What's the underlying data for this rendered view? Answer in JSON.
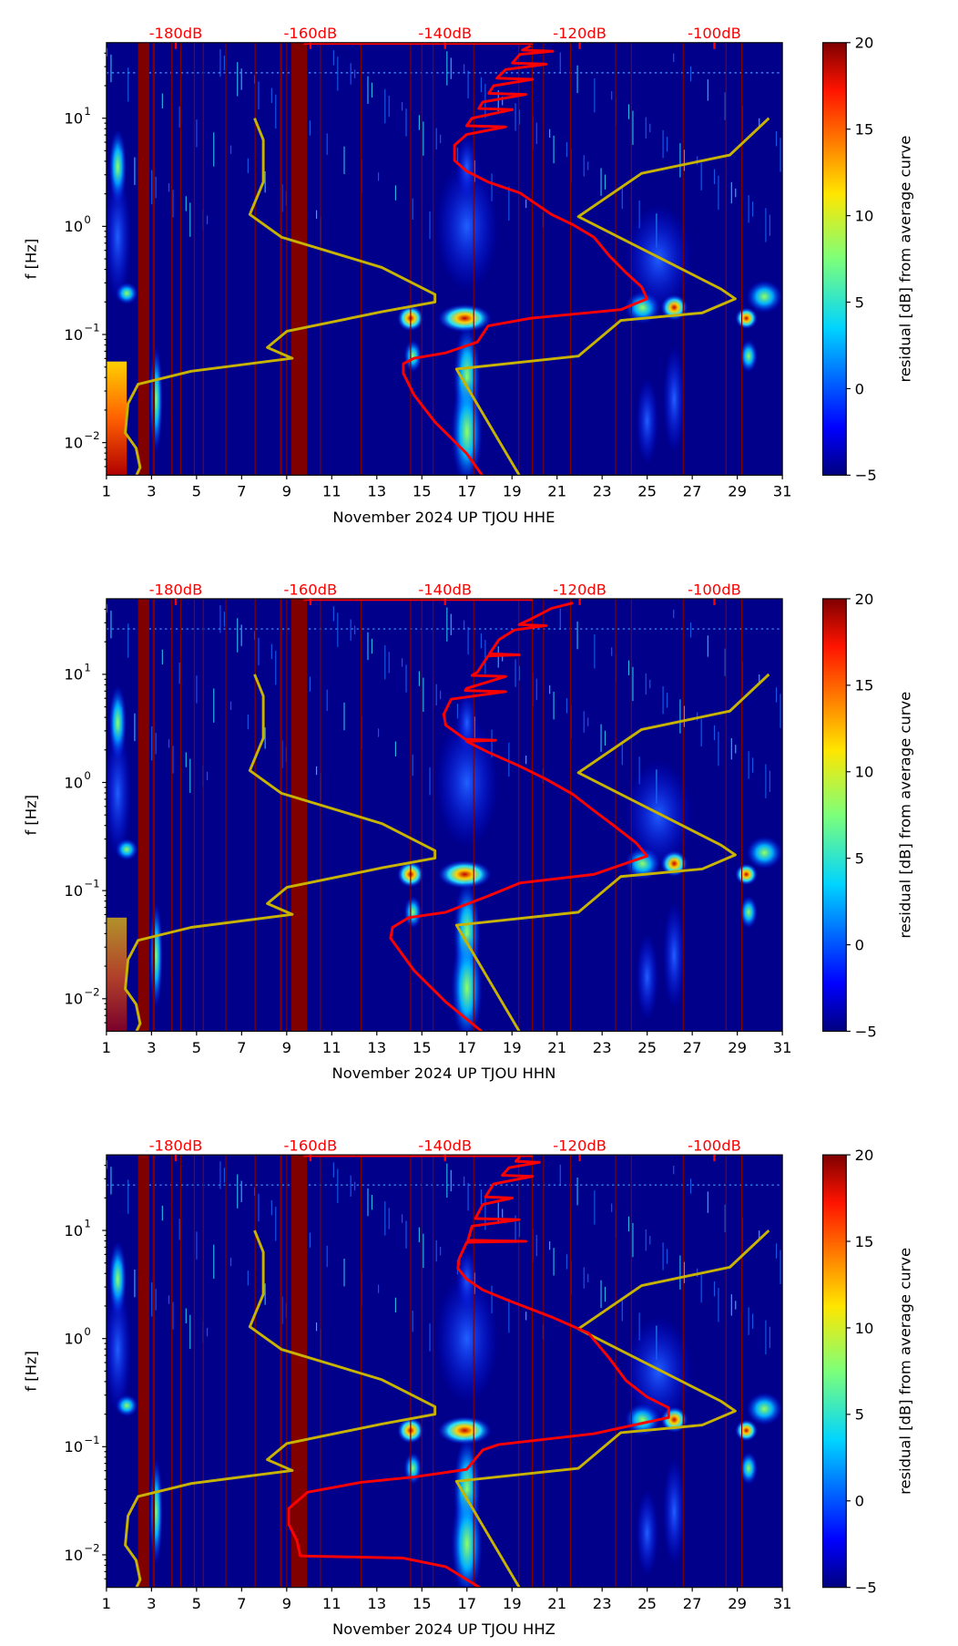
{
  "chart_data": [
    {
      "type": "heatmap",
      "xlabel": "November 2024 UP TJOU  HHE",
      "ylabel": "f [Hz]",
      "colorbar_label": "residual [dB] from average curve",
      "average_curve_log10f_dB": [
        [
          -2.31,
          -134.4
        ],
        [
          -2.1,
          -136.8
        ],
        [
          -1.81,
          -141.5
        ],
        [
          -1.56,
          -144.6
        ],
        [
          -1.36,
          -146.2
        ],
        [
          -1.27,
          -146.2
        ],
        [
          -1.22,
          -144.6
        ],
        [
          -1.17,
          -139.9
        ],
        [
          -1.07,
          -135.2
        ],
        [
          -0.92,
          -133.6
        ],
        [
          -0.85,
          -127.3
        ],
        [
          -0.77,
          -113.9
        ],
        [
          -0.67,
          -110.0
        ],
        [
          -0.56,
          -110.8
        ],
        [
          -0.43,
          -113.1
        ],
        [
          -0.28,
          -115.5
        ],
        [
          -0.1,
          -117.9
        ],
        [
          0.015,
          -121.0
        ],
        [
          0.11,
          -124.2
        ],
        [
          0.31,
          -128.9
        ],
        [
          0.41,
          -133.6
        ],
        [
          0.51,
          -136.8
        ],
        [
          0.61,
          -138.6
        ],
        [
          0.75,
          -138.6
        ],
        [
          0.85,
          -136.8
        ],
        [
          0.92,
          -131
        ],
        [
          0.93,
          -136.8
        ],
        [
          1.0,
          -136.0
        ],
        [
          1.08,
          -130
        ],
        [
          1.09,
          -135
        ],
        [
          1.15,
          -134.4
        ],
        [
          1.22,
          -128
        ],
        [
          1.23,
          -133.5
        ],
        [
          1.3,
          -132.8
        ],
        [
          1.36,
          -127
        ],
        [
          1.37,
          -132.3
        ],
        [
          1.45,
          -131
        ],
        [
          1.5,
          -125
        ],
        [
          1.51,
          -130
        ],
        [
          1.59,
          -128.9
        ],
        [
          1.62,
          -124
        ],
        [
          1.63,
          -128.5
        ],
        [
          1.67,
          -127.3
        ]
      ]
    },
    {
      "type": "heatmap",
      "xlabel": "November 2024 UP TJOU  HHN",
      "ylabel": "f [Hz]",
      "colorbar_label": "residual [dB] from average curve",
      "average_curve_log10f_dB": [
        [
          -2.31,
          -134.4
        ],
        [
          -2.03,
          -139.9
        ],
        [
          -1.74,
          -144.6
        ],
        [
          -1.44,
          -148.1
        ],
        [
          -1.34,
          -147.8
        ],
        [
          -1.25,
          -145.4
        ],
        [
          -1.2,
          -139.9
        ],
        [
          -1.05,
          -133.6
        ],
        [
          -0.93,
          -128.9
        ],
        [
          -0.85,
          -117.9
        ],
        [
          -0.68,
          -110.0
        ],
        [
          -0.56,
          -111.6
        ],
        [
          -0.41,
          -114.7
        ],
        [
          -0.26,
          -117.9
        ],
        [
          -0.11,
          -121.0
        ],
        [
          0.03,
          -125.0
        ],
        [
          0.15,
          -128.9
        ],
        [
          0.28,
          -133.6
        ],
        [
          0.38,
          -136.8
        ],
        [
          0.39,
          -132.5
        ],
        [
          0.4,
          -137
        ],
        [
          0.53,
          -139.9
        ],
        [
          0.63,
          -140.2
        ],
        [
          0.77,
          -139.1
        ],
        [
          0.84,
          -131
        ],
        [
          0.85,
          -137
        ],
        [
          0.87,
          -136.8
        ],
        [
          0.98,
          -131
        ],
        [
          0.99,
          -136
        ],
        [
          1.02,
          -135.2
        ],
        [
          1.17,
          -133.6
        ],
        [
          1.18,
          -129
        ],
        [
          1.19,
          -133.4
        ],
        [
          1.32,
          -132.0
        ],
        [
          1.41,
          -129.7
        ],
        [
          1.45,
          -125
        ],
        [
          1.46,
          -129
        ],
        [
          1.51,
          -127.3
        ],
        [
          1.61,
          -124.2
        ],
        [
          1.66,
          -121.0
        ]
      ]
    },
    {
      "type": "heatmap",
      "xlabel": "November 2024 UP TJOU  HHZ",
      "ylabel": "f [Hz]",
      "colorbar_label": "residual [dB] from average curve",
      "average_curve_log10f_dB": [
        [
          -2.32,
          -134.4
        ],
        [
          -2.11,
          -139.9
        ],
        [
          -2.03,
          -146.2
        ],
        [
          -2.01,
          -161.5
        ],
        [
          -1.87,
          -162.0
        ],
        [
          -1.72,
          -163.2
        ],
        [
          -1.57,
          -163.2
        ],
        [
          -1.42,
          -160.4
        ],
        [
          -1.33,
          -152.5
        ],
        [
          -1.28,
          -144.6
        ],
        [
          -1.21,
          -136.8
        ],
        [
          -1.03,
          -134.4
        ],
        [
          -0.98,
          -132.0
        ],
        [
          -0.88,
          -117.9
        ],
        [
          -0.73,
          -106.8
        ],
        [
          -0.64,
          -106.8
        ],
        [
          -0.54,
          -110.0
        ],
        [
          -0.39,
          -113.1
        ],
        [
          -0.19,
          -115.5
        ],
        [
          0.05,
          -118.7
        ],
        [
          0.2,
          -124.2
        ],
        [
          0.35,
          -130.5
        ],
        [
          0.45,
          -134.4
        ],
        [
          0.55,
          -136.8
        ],
        [
          0.65,
          -138.1
        ],
        [
          0.74,
          -137.9
        ],
        [
          0.89,
          -136.8
        ],
        [
          0.9,
          -128
        ],
        [
          0.91,
          -136.6
        ],
        [
          1.04,
          -136.0
        ],
        [
          1.1,
          -129
        ],
        [
          1.11,
          -135.5
        ],
        [
          1.24,
          -134.4
        ],
        [
          1.3,
          -130
        ],
        [
          1.31,
          -134
        ],
        [
          1.43,
          -132.8
        ],
        [
          1.5,
          -127
        ],
        [
          1.51,
          -131.5
        ],
        [
          1.58,
          -130.5
        ],
        [
          1.63,
          -126
        ],
        [
          1.64,
          -129.5
        ],
        [
          1.68,
          -128.9
        ]
      ]
    }
  ],
  "shared": {
    "x_ticks": [
      1,
      3,
      5,
      7,
      9,
      11,
      13,
      15,
      17,
      19,
      21,
      23,
      25,
      27,
      29,
      31
    ],
    "xlim_day": [
      1,
      31
    ],
    "ylim_Hz": [
      0.005,
      50
    ],
    "y_ticks": [
      {
        "exp": "1",
        "label_base": "10",
        "log": 1
      },
      {
        "exp": "0",
        "label_base": "10",
        "log": 0
      },
      {
        "exp": "−1",
        "label_base": "10",
        "log": -1
      },
      {
        "exp": "−2",
        "label_base": "10",
        "log": -2
      }
    ],
    "top_axis": {
      "range_dB": [
        -190.3,
        -89.9
      ],
      "ticks": [
        {
          "v": -180,
          "label": "-180dB"
        },
        {
          "v": -160,
          "label": "-160dB"
        },
        {
          "v": -140,
          "label": "-140dB"
        },
        {
          "v": -120,
          "label": "-120dB"
        },
        {
          "v": -100,
          "label": "-100dB"
        }
      ]
    },
    "colorbar": {
      "range": [
        -5,
        20
      ],
      "ticks": [
        {
          "v": 20,
          "label": "20"
        },
        {
          "v": 15,
          "label": "15"
        },
        {
          "v": 10,
          "label": "10"
        },
        {
          "v": 5,
          "label": "5"
        },
        {
          "v": 0,
          "label": "0"
        },
        {
          "v": -5,
          "label": "−5"
        }
      ]
    },
    "nlnm_log10f_dB": [
      [
        1.0,
        -168.3
      ],
      [
        0.8,
        -167.0
      ],
      [
        0.41,
        -167.0
      ],
      [
        0.11,
        -169.0
      ],
      [
        -0.1,
        -164.3
      ],
      [
        -0.38,
        -149.4
      ],
      [
        -0.63,
        -141.5
      ],
      [
        -0.7,
        -141.5
      ],
      [
        -0.79,
        -149.4
      ],
      [
        -0.97,
        -163.5
      ],
      [
        -1.12,
        -166.4
      ],
      [
        -1.22,
        -162.7
      ],
      [
        -1.34,
        -177.7
      ],
      [
        -1.46,
        -185.6
      ],
      [
        -1.64,
        -187.1
      ],
      [
        -1.91,
        -187.5
      ],
      [
        -2.05,
        -185.9
      ],
      [
        -2.23,
        -185.3
      ],
      [
        -2.31,
        -185.9
      ]
    ],
    "nhnm_log10f_dB": [
      [
        1.0,
        -91.9
      ],
      [
        0.66,
        -97.7
      ],
      [
        0.49,
        -110.8
      ],
      [
        0.09,
        -120.2
      ],
      [
        -0.58,
        -99.0
      ],
      [
        -0.67,
        -96.9
      ],
      [
        -0.8,
        -101.8
      ],
      [
        -0.87,
        -113.9
      ],
      [
        -1.2,
        -120.2
      ],
      [
        -1.32,
        -138.3
      ],
      [
        -2.31,
        -128.9
      ]
    ],
    "gap_days_wide": [
      [
        2.4,
        2.9
      ],
      [
        3.05,
        3.15
      ],
      [
        8.7,
        8.8
      ],
      [
        9.2,
        9.9
      ]
    ],
    "gap_days_thin": [
      3.9,
      4.3,
      4.9,
      5.3,
      6.3,
      7.6,
      9.0,
      10.5,
      12.3,
      14.5,
      15.0,
      15.5,
      17.3,
      19.3,
      19.9,
      20.4,
      21.6,
      23.6,
      24.3,
      26.6,
      28.5,
      29.2
    ],
    "colors": {
      "average_curve": "#ff0000",
      "noise_models": "#c8b400",
      "gap": "#800000",
      "background": "#00008b"
    }
  }
}
